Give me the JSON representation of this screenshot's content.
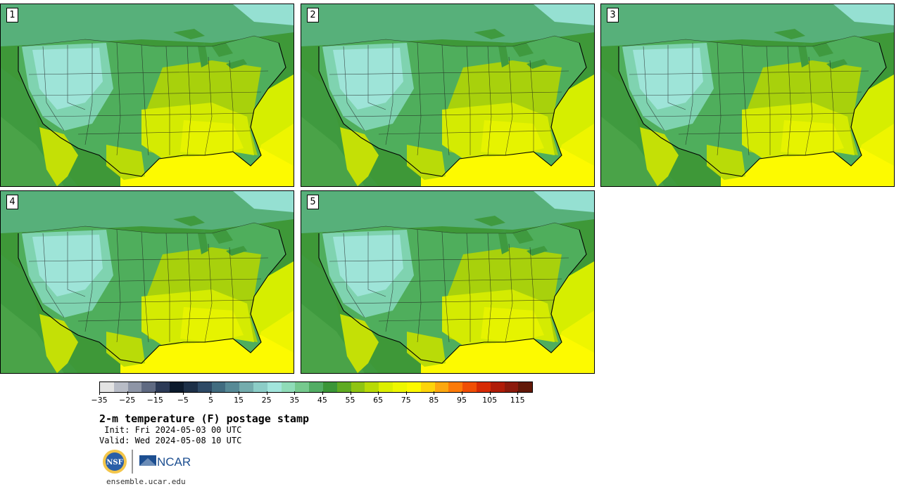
{
  "panels": [
    {
      "label": "1"
    },
    {
      "label": "2"
    },
    {
      "label": "3"
    },
    {
      "label": "4"
    },
    {
      "label": "5"
    }
  ],
  "colorbar": {
    "colors": [
      "#e3e3e3",
      "#b8bcc6",
      "#8e95a6",
      "#5f6a82",
      "#2c3a56",
      "#0c1a2c",
      "#1d3048",
      "#2e4a66",
      "#416c80",
      "#578a96",
      "#74acad",
      "#8ccdc7",
      "#a2e5dc",
      "#8fdcb8",
      "#76c98e",
      "#52ad64",
      "#3a9637",
      "#5fab22",
      "#8fc412",
      "#b8da05",
      "#dcef00",
      "#eef700",
      "#fdf900",
      "#fdd40a",
      "#fca810",
      "#fc7a08",
      "#f04e04",
      "#d62a04",
      "#b01c08",
      "#8c1a0c",
      "#621808"
    ],
    "ticks": [
      "−35",
      "−25",
      "−15",
      "−5",
      "5",
      "15",
      "25",
      "35",
      "45",
      "55",
      "65",
      "75",
      "85",
      "95",
      "105",
      "115"
    ]
  },
  "title": "2-m temperature (F) postage stamp",
  "init": " Init: Fri 2024-05-03 00 UTC",
  "valid": "Valid: Wed 2024-05-08 10 UTC",
  "logos": {
    "nsf": "NSF",
    "ncar": "NCAR"
  },
  "site": "ensemble.ucar.edu"
}
